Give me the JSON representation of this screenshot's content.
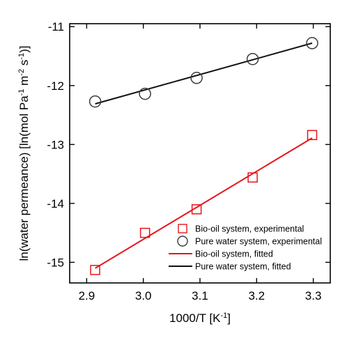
{
  "chart_data": {
    "type": "scatter",
    "xlabel": {
      "main": "1000/T [K",
      "sup": "-1",
      "close": "]"
    },
    "ylabel": {
      "parts": [
        {
          "t": "ln(water permeance) [ln(mol Pa",
          "sup": false
        },
        {
          "t": "-1",
          "sup": true
        },
        {
          "t": " m",
          "sup": false
        },
        {
          "t": "-2",
          "sup": true
        },
        {
          "t": " s",
          "sup": false
        },
        {
          "t": "-1",
          "sup": true
        },
        {
          "t": ")]",
          "sup": false
        }
      ]
    },
    "xlim": [
      2.87,
      3.33
    ],
    "ylim": [
      -15.35,
      -10.95
    ],
    "xticks": [
      2.9,
      3.0,
      3.1,
      3.2,
      3.3
    ],
    "xtick_labels": [
      "2.9",
      "3.0",
      "3.1",
      "3.2",
      "3.3"
    ],
    "yticks": [
      -15,
      -14,
      -13,
      -12,
      -11
    ],
    "ytick_labels": [
      "-15",
      "-14",
      "-13",
      "-12",
      "-11"
    ],
    "series": [
      {
        "name": "Bio-oil system, experimental",
        "kind": "marker",
        "marker": "square",
        "color": "#e8141b",
        "x": [
          2.915,
          3.003,
          3.094,
          3.193,
          3.298
        ],
        "y": [
          -15.13,
          -14.5,
          -14.1,
          -13.56,
          -12.84
        ]
      },
      {
        "name": "Pure water system, experimental",
        "kind": "marker",
        "marker": "circle",
        "color": "#3a3a3a",
        "x": [
          2.915,
          3.003,
          3.094,
          3.193,
          3.298
        ],
        "y": [
          -12.27,
          -12.14,
          -11.87,
          -11.55,
          -11.28
        ]
      },
      {
        "name": "Bio-oil system, fitted",
        "kind": "line",
        "color": "#e8141b",
        "x": [
          2.915,
          3.298
        ],
        "y": [
          -15.1,
          -12.89
        ]
      },
      {
        "name": "Pure water system, fitted",
        "kind": "line",
        "color": "#111111",
        "x": [
          2.915,
          3.298
        ],
        "y": [
          -12.31,
          -11.28
        ]
      }
    ],
    "legend_position": "bottom-right",
    "grid": false
  }
}
